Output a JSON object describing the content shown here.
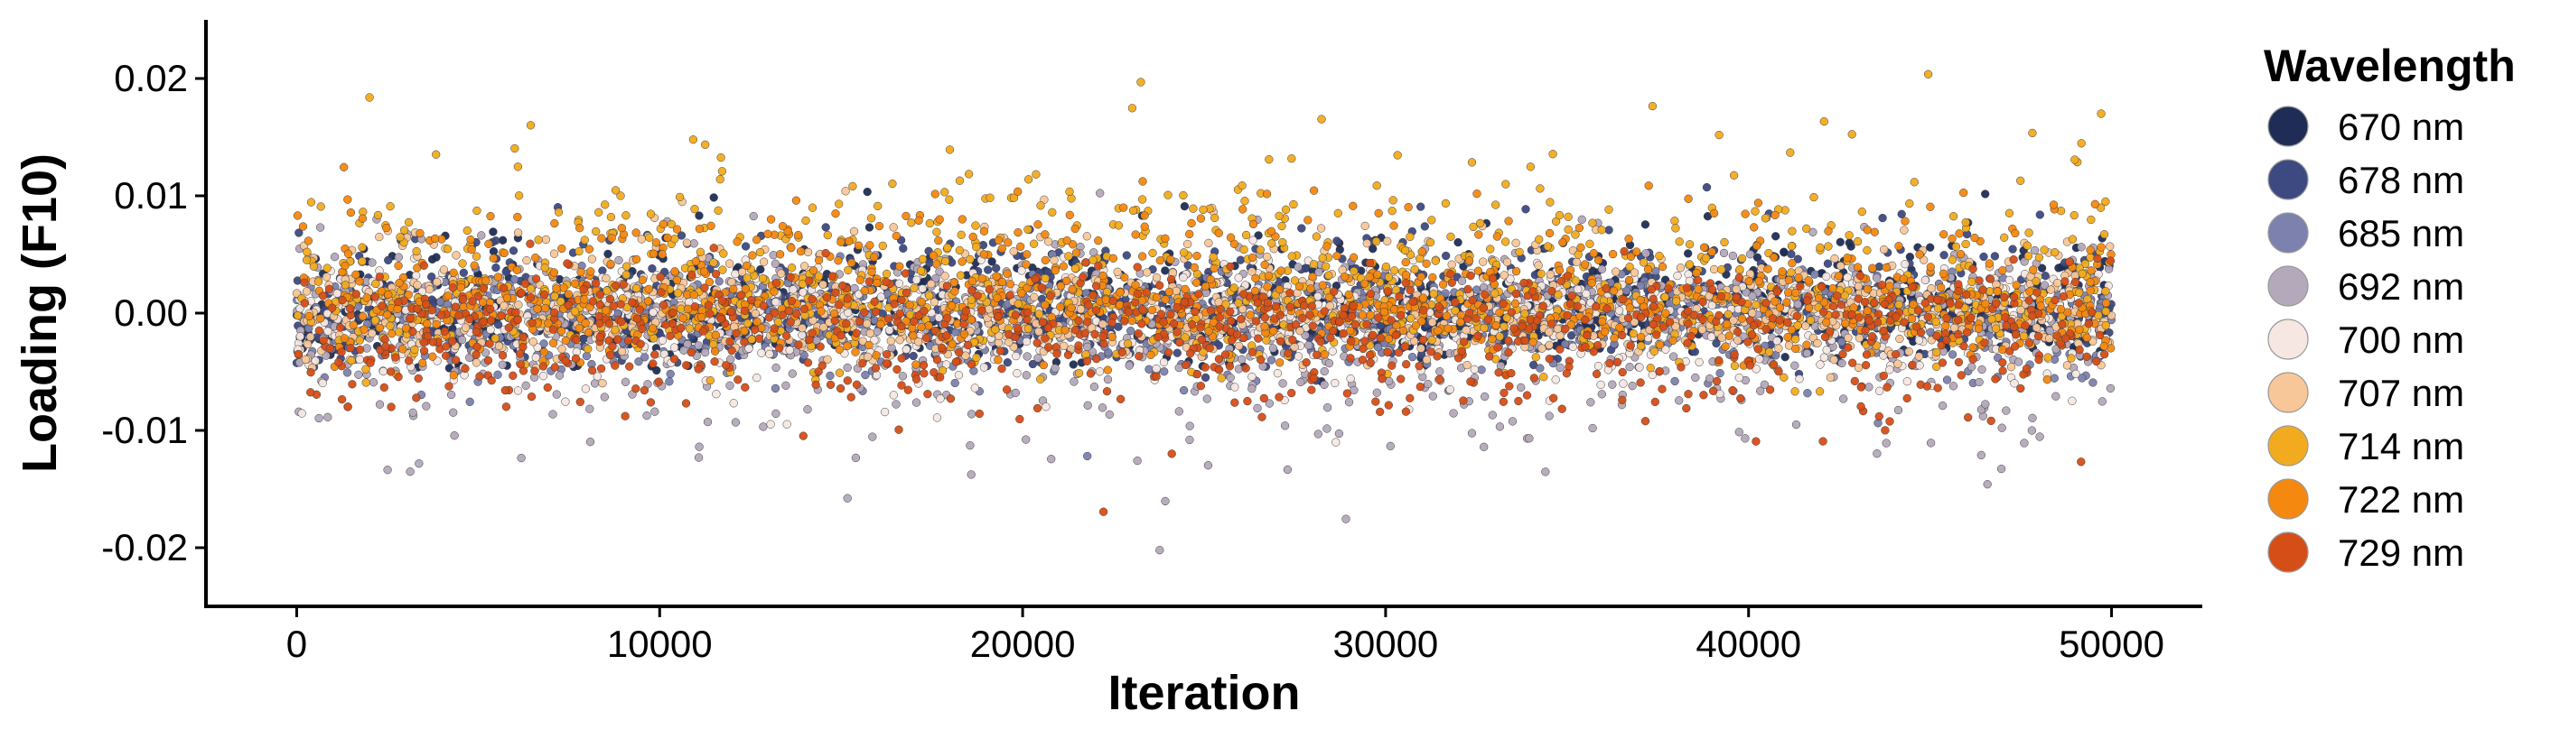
{
  "chart_data": {
    "type": "scatter",
    "title": "",
    "xlabel": "Iteration",
    "ylabel": "Loading (F10)",
    "xlim": [
      -2500,
      52500
    ],
    "ylim": [
      -0.025,
      0.025
    ],
    "x_ticks": [
      0,
      10000,
      20000,
      30000,
      40000,
      50000
    ],
    "x_tick_labels": [
      "0",
      "10000",
      "20000",
      "30000",
      "40000",
      "50000"
    ],
    "y_ticks": [
      0.02,
      0.01,
      0.0,
      -0.01,
      -0.02
    ],
    "y_tick_labels": [
      "0.02",
      "0.01",
      "0.00",
      "-0.01",
      "-0.02"
    ],
    "grid": false,
    "legend": {
      "title": "Wavelength",
      "placement": "right"
    },
    "series": [
      {
        "name": "670 nm",
        "color": "#1f2d56",
        "mean": 0.0,
        "sd": 0.0025,
        "skew": 1.2
      },
      {
        "name": "678 nm",
        "color": "#3d4a82",
        "mean": 0.0,
        "sd": 0.0025,
        "skew": 0.6
      },
      {
        "name": "685 nm",
        "color": "#7c82ad",
        "mean": 0.0,
        "sd": 0.0022,
        "skew": -0.6
      },
      {
        "name": "692 nm",
        "color": "#b4a9bb",
        "mean": -0.001,
        "sd": 0.0045,
        "skew": -1.4
      },
      {
        "name": "700 nm",
        "color": "#f6e7e2",
        "mean": 0.0,
        "sd": 0.0025,
        "skew": -1.0
      },
      {
        "name": "707 nm",
        "color": "#f8c799",
        "mean": 0.0,
        "sd": 0.0025,
        "skew": 0.4
      },
      {
        "name": "714 nm",
        "color": "#f2ab1e",
        "mean": 0.002,
        "sd": 0.0045,
        "skew": 1.6
      },
      {
        "name": "722 nm",
        "color": "#f5880f",
        "mean": 0.001,
        "sd": 0.003,
        "skew": 1.2
      },
      {
        "name": "729 nm",
        "color": "#d64e17",
        "mean": -0.001,
        "sd": 0.003,
        "skew": -1.2
      }
    ]
  }
}
